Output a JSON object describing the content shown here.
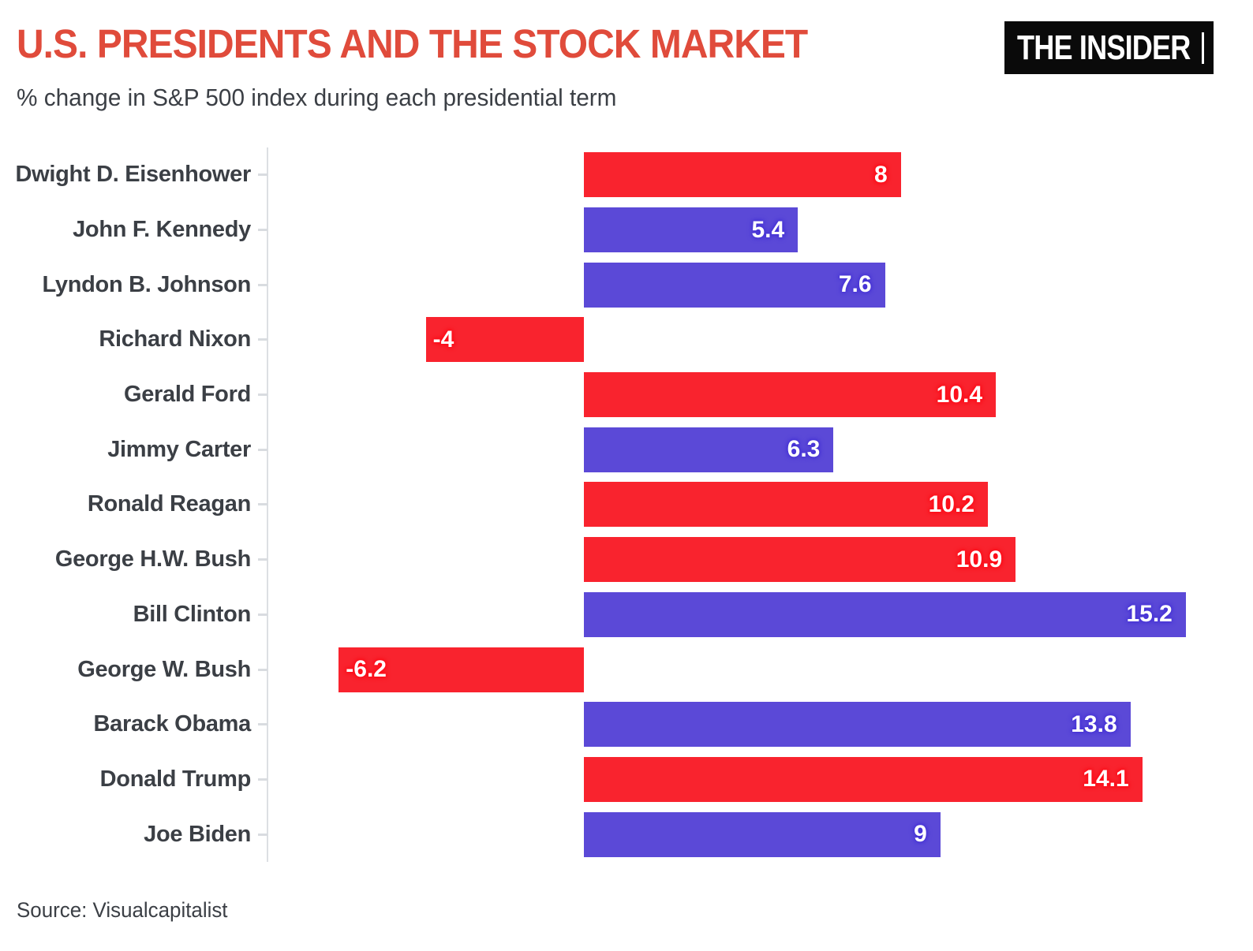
{
  "header": {
    "title": "U.S. PRESIDENTS AND THE STOCK MARKET",
    "subtitle": "% change in S&P 500 index during each presidential term",
    "logo_text": "THE INSIDER"
  },
  "footer": {
    "source": "Source: Visualcapitalist"
  },
  "colors": {
    "title_red": "#e04b3b",
    "bar_red": "#f9232e",
    "bar_blue": "#5b49d7",
    "glow_red": "#ff0a16",
    "glow_blue": "#4431d6",
    "axis_gray": "#dcdfe3",
    "logo_bg": "#0a0a0a"
  },
  "chart_data": {
    "type": "bar",
    "orientation": "horizontal",
    "title": "U.S. PRESIDENTS AND THE STOCK MARKET",
    "subtitle": "% change in S&P 500 index during each presidential term",
    "xlabel": "",
    "ylabel": "",
    "xlim": [
      -8,
      16
    ],
    "grid": false,
    "value_labels": "inside-end",
    "categories": [
      "Dwight D. Eisenhower",
      "John F. Kennedy",
      "Lyndon B. Johnson",
      "Richard Nixon",
      "Gerald Ford",
      "Jimmy Carter",
      "Ronald Reagan",
      "George H.W. Bush",
      "Bill Clinton",
      "George W. Bush",
      "Barack Obama",
      "Donald Trump",
      "Joe Biden"
    ],
    "values": [
      8,
      5.4,
      7.6,
      -4,
      10.4,
      6.3,
      10.2,
      10.9,
      15.2,
      -6.2,
      13.8,
      14.1,
      9
    ],
    "bars": [
      {
        "label": "Dwight D. Eisenhower",
        "value": 8,
        "display": "8",
        "color": "red"
      },
      {
        "label": "John F. Kennedy",
        "value": 5.4,
        "display": "5.4",
        "color": "blue"
      },
      {
        "label": "Lyndon B. Johnson",
        "value": 7.6,
        "display": "7.6",
        "color": "blue"
      },
      {
        "label": "Richard Nixon",
        "value": -4,
        "display": "-4",
        "color": "red"
      },
      {
        "label": "Gerald Ford",
        "value": 10.4,
        "display": "10.4",
        "color": "red"
      },
      {
        "label": "Jimmy Carter",
        "value": 6.3,
        "display": "6.3",
        "color": "blue"
      },
      {
        "label": "Ronald Reagan",
        "value": 10.2,
        "display": "10.2",
        "color": "red"
      },
      {
        "label": "George H.W. Bush",
        "value": 10.9,
        "display": "10.9",
        "color": "red"
      },
      {
        "label": "Bill Clinton",
        "value": 15.2,
        "display": "15.2",
        "color": "blue"
      },
      {
        "label": "George W. Bush",
        "value": -6.2,
        "display": "-6.2",
        "color": "red"
      },
      {
        "label": "Barack Obama",
        "value": 13.8,
        "display": "13.8",
        "color": "blue"
      },
      {
        "label": "Donald Trump",
        "value": 14.1,
        "display": "14.1",
        "color": "red"
      },
      {
        "label": "Joe Biden",
        "value": 9,
        "display": "9",
        "color": "blue"
      }
    ]
  }
}
